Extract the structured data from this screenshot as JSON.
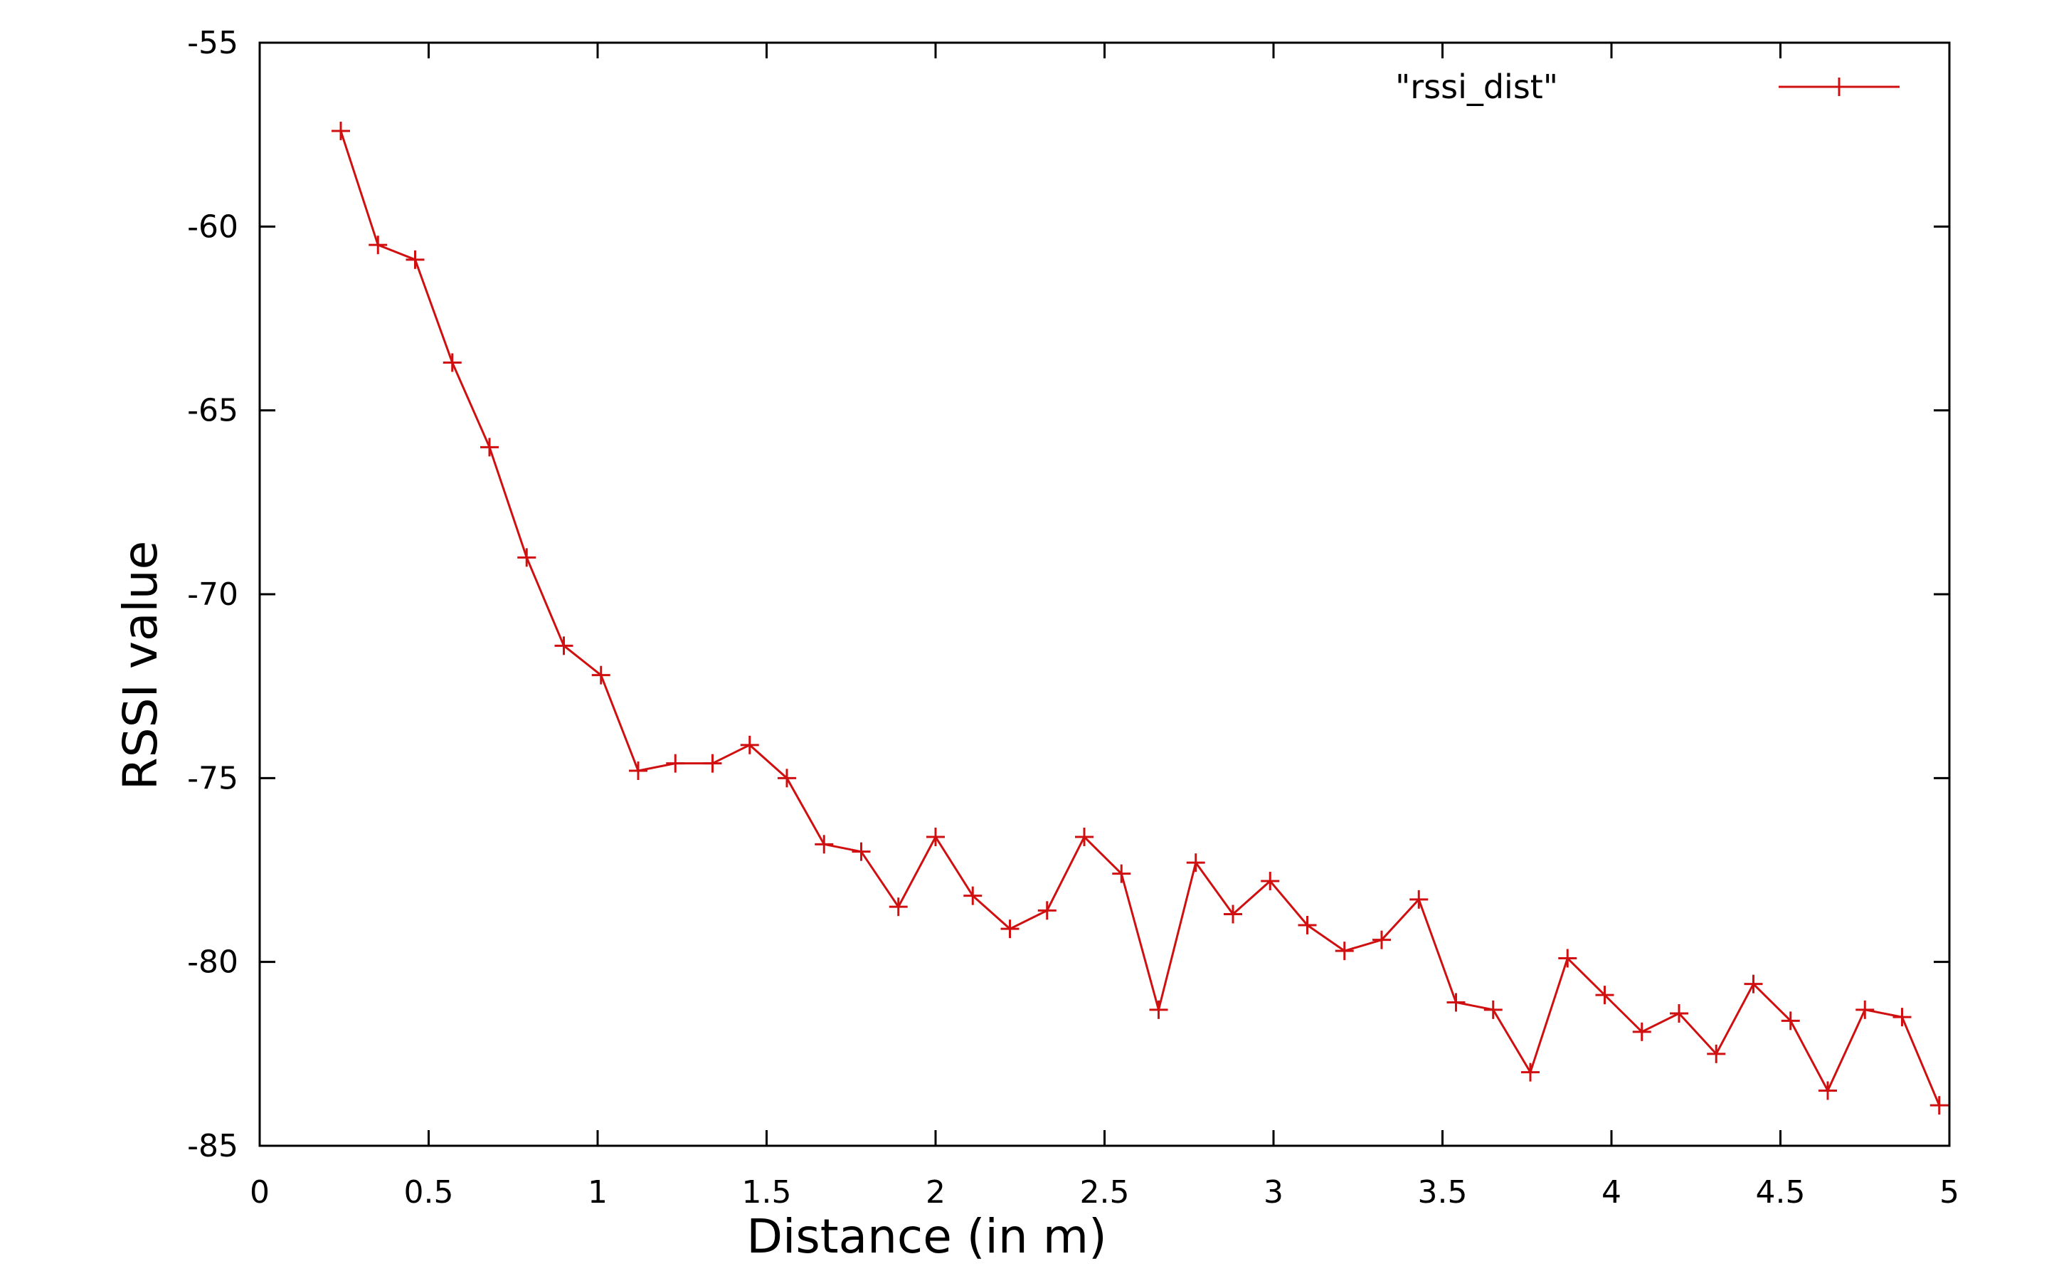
{
  "chart_data": {
    "type": "line",
    "xlabel": "Distance (in m)",
    "ylabel": "RSSI value",
    "xlim": [
      0,
      5
    ],
    "ylim": [
      -85,
      -55
    ],
    "x_ticks": [
      0,
      0.5,
      1,
      1.5,
      2,
      2.5,
      3,
      3.5,
      4,
      4.5,
      5
    ],
    "y_ticks": [
      -55,
      -60,
      -65,
      -70,
      -75,
      -80,
      -85
    ],
    "grid": false,
    "legend_position": "top-right",
    "series_color": "#d01010",
    "series": [
      {
        "name": "\"rssi_dist\"",
        "x": [
          0.24,
          0.35,
          0.46,
          0.57,
          0.68,
          0.79,
          0.9,
          1.01,
          1.12,
          1.23,
          1.34,
          1.45,
          1.56,
          1.67,
          1.78,
          1.89,
          2.0,
          2.11,
          2.22,
          2.33,
          2.44,
          2.55,
          2.66,
          2.77,
          2.88,
          2.99,
          3.1,
          3.21,
          3.32,
          3.43,
          3.54,
          3.65,
          3.76,
          3.87,
          3.98,
          4.09,
          4.2,
          4.31,
          4.42,
          4.53,
          4.64,
          4.75,
          4.86,
          4.97
        ],
        "y": [
          -57.4,
          -60.5,
          -60.9,
          -63.7,
          -66.0,
          -69.0,
          -71.4,
          -72.2,
          -74.8,
          -74.6,
          -74.6,
          -74.1,
          -75.0,
          -76.8,
          -77.0,
          -78.5,
          -76.6,
          -78.2,
          -79.1,
          -78.6,
          -76.6,
          -77.6,
          -81.3,
          -77.3,
          -78.7,
          -77.8,
          -79.0,
          -79.7,
          -79.4,
          -78.3,
          -81.1,
          -81.3,
          -83.0,
          -79.9,
          -80.9,
          -81.9,
          -81.4,
          -82.5,
          -80.6,
          -81.6,
          -83.5,
          -81.3,
          -81.5,
          -83.9
        ]
      }
    ]
  }
}
